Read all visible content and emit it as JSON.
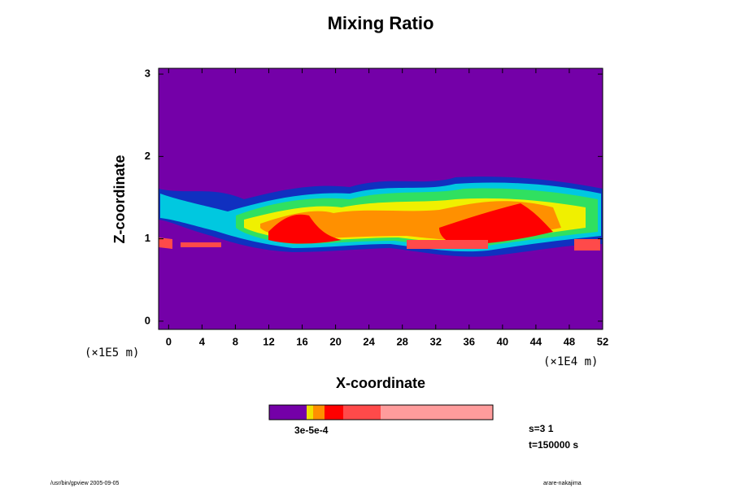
{
  "chart_data": {
    "type": "contour",
    "title": "Mixing Ratio",
    "xlabel": "X-coordinate",
    "ylabel": "Z-coordinate",
    "x_unit": "(×1E4 m)",
    "y_unit": "(×1E5 m)",
    "xlim": [
      -1.2,
      52
    ],
    "ylim": [
      -0.1,
      3.07
    ],
    "xticks": [
      0,
      4,
      8,
      12,
      16,
      20,
      24,
      28,
      32,
      36,
      40,
      44,
      48,
      52
    ],
    "yticks": [
      0,
      1,
      2,
      3
    ],
    "colorbar": {
      "colors": [
        "#7400a8",
        "#f0e000",
        "#ff9000",
        "#ff0000",
        "#ff4a4a",
        "#ff9c9c"
      ],
      "label": "3e-5e-4"
    },
    "step_label": "s=3 1",
    "time_label": "t=150000 s",
    "footer_left": "/usr/bin/gpview 2005-09-05",
    "footer_right": "arare-nakajima"
  }
}
